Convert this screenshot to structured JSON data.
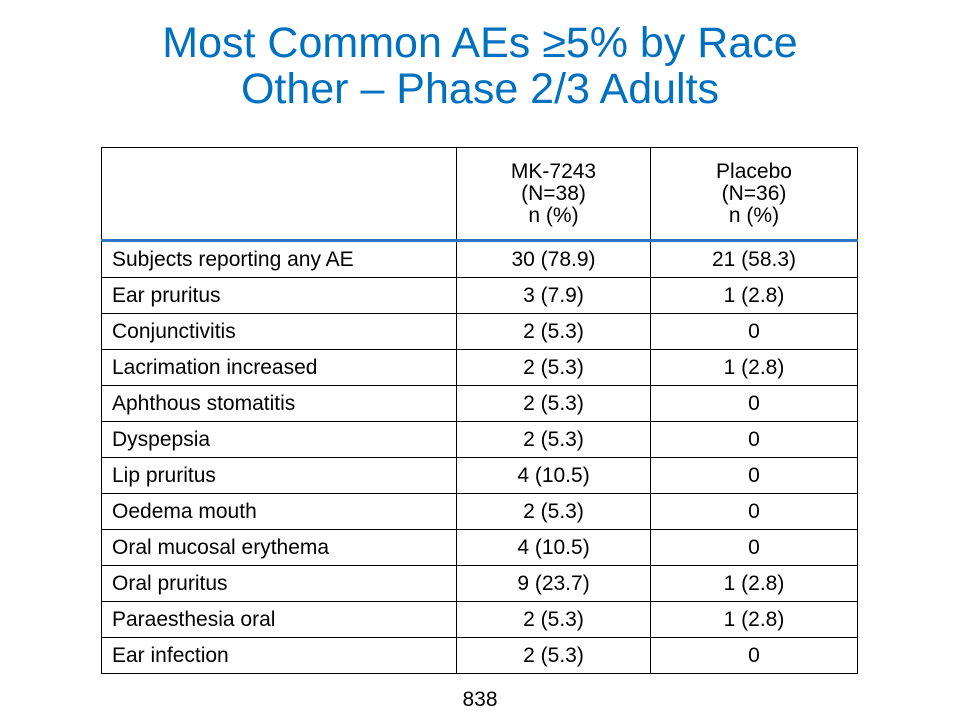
{
  "title": {
    "line1": "Most Common AEs ≥5% by Race",
    "line2": "Other – Phase 2/3 Adults"
  },
  "table": {
    "columns": [
      {
        "line1": "",
        "line2": "",
        "line3": ""
      },
      {
        "line1": "MK-7243",
        "line2": "(N=38)",
        "line3": "n (%)"
      },
      {
        "line1": "Placebo",
        "line2": "(N=36)",
        "line3": "n (%)"
      }
    ],
    "rows": [
      {
        "label": "Subjects reporting any AE",
        "mk": "30 (78.9)",
        "placebo": "21 (58.3)"
      },
      {
        "label": "Ear pruritus",
        "mk": "3 (7.9)",
        "placebo": "1 (2.8)"
      },
      {
        "label": "Conjunctivitis",
        "mk": "2 (5.3)",
        "placebo": "0"
      },
      {
        "label": "Lacrimation increased",
        "mk": "2 (5.3)",
        "placebo": "1 (2.8)"
      },
      {
        "label": "Aphthous stomatitis",
        "mk": "2 (5.3)",
        "placebo": "0"
      },
      {
        "label": "Dyspepsia",
        "mk": "2 (5.3)",
        "placebo": "0"
      },
      {
        "label": "Lip pruritus",
        "mk": "4 (10.5)",
        "placebo": "0"
      },
      {
        "label": "Oedema mouth",
        "mk": "2 (5.3)",
        "placebo": "0"
      },
      {
        "label": "Oral mucosal erythema",
        "mk": "4 (10.5)",
        "placebo": "0"
      },
      {
        "label": "Oral pruritus",
        "mk": "9 (23.7)",
        "placebo": "1 (2.8)"
      },
      {
        "label": "Paraesthesia oral",
        "mk": "2 (5.3)",
        "placebo": "1 (2.8)"
      },
      {
        "label": "Ear infection",
        "mk": "2 (5.3)",
        "placebo": "0"
      }
    ]
  },
  "footer": {
    "page_number": "838"
  },
  "colors": {
    "title": "#0070c0",
    "header_rule": "#2f73c1"
  }
}
